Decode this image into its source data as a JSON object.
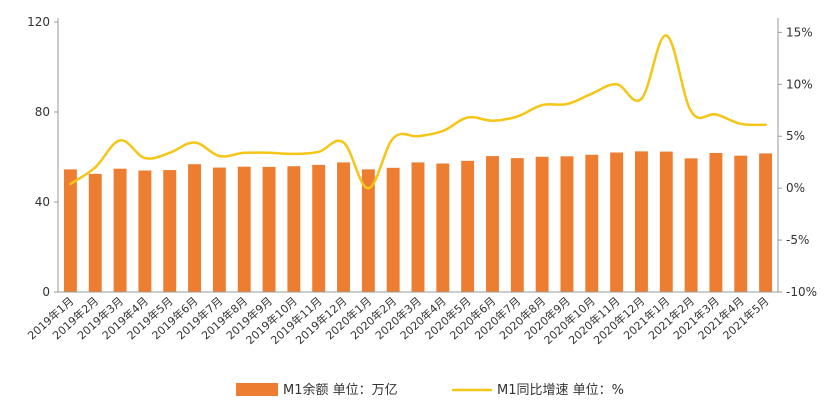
{
  "chart_data": {
    "type": "bar+line",
    "categories": [
      "2019年1月",
      "2019年2月",
      "2019年3月",
      "2019年4月",
      "2019年5月",
      "2019年6月",
      "2019年7月",
      "2019年8月",
      "2019年9月",
      "2019年10月",
      "2019年11月",
      "2019年12月",
      "2020年1月",
      "2020年2月",
      "2020年3月",
      "2020年4月",
      "2020年5月",
      "2020年6月",
      "2020年7月",
      "2020年8月",
      "2020年9月",
      "2020年10月",
      "2020年11月",
      "2020年12月",
      "2021年1月",
      "2021年2月",
      "2021年3月",
      "2021年4月",
      "2021年5月"
    ],
    "series": [
      {
        "name": "M1余额 单位：万亿",
        "type": "bar",
        "axis": "left",
        "color": "#ED7D31",
        "values": [
          54.5,
          52.5,
          54.8,
          54.0,
          54.2,
          56.8,
          55.3,
          55.7,
          55.6,
          55.9,
          56.5,
          57.6,
          54.5,
          55.2,
          57.6,
          57.1,
          58.3,
          60.4,
          59.5,
          60.1,
          60.3,
          61.0,
          62.0,
          62.5,
          62.4,
          59.4,
          61.8,
          60.6,
          61.6
        ]
      },
      {
        "name": "M1同比增速 单位：%",
        "type": "line",
        "axis": "right",
        "color": "#F5C518",
        "values": [
          0.4,
          2.0,
          4.6,
          2.9,
          3.4,
          4.4,
          3.1,
          3.4,
          3.4,
          3.3,
          3.5,
          4.4,
          0.0,
          4.8,
          5.0,
          5.5,
          6.8,
          6.5,
          6.9,
          8.0,
          8.1,
          9.1,
          10.0,
          8.6,
          14.7,
          7.4,
          7.1,
          6.2,
          6.1
        ]
      }
    ],
    "y_left": {
      "ticks": [
        "0",
        "40",
        "80",
        "120"
      ],
      "ylim": [
        0,
        120
      ]
    },
    "y_right": {
      "ticks": [
        "-10%",
        "-5%",
        "0%",
        "5%",
        "10%",
        "15%"
      ],
      "ylim": [
        -10,
        16
      ]
    },
    "legend": {
      "placement": "bottom-center"
    },
    "grid": false
  }
}
